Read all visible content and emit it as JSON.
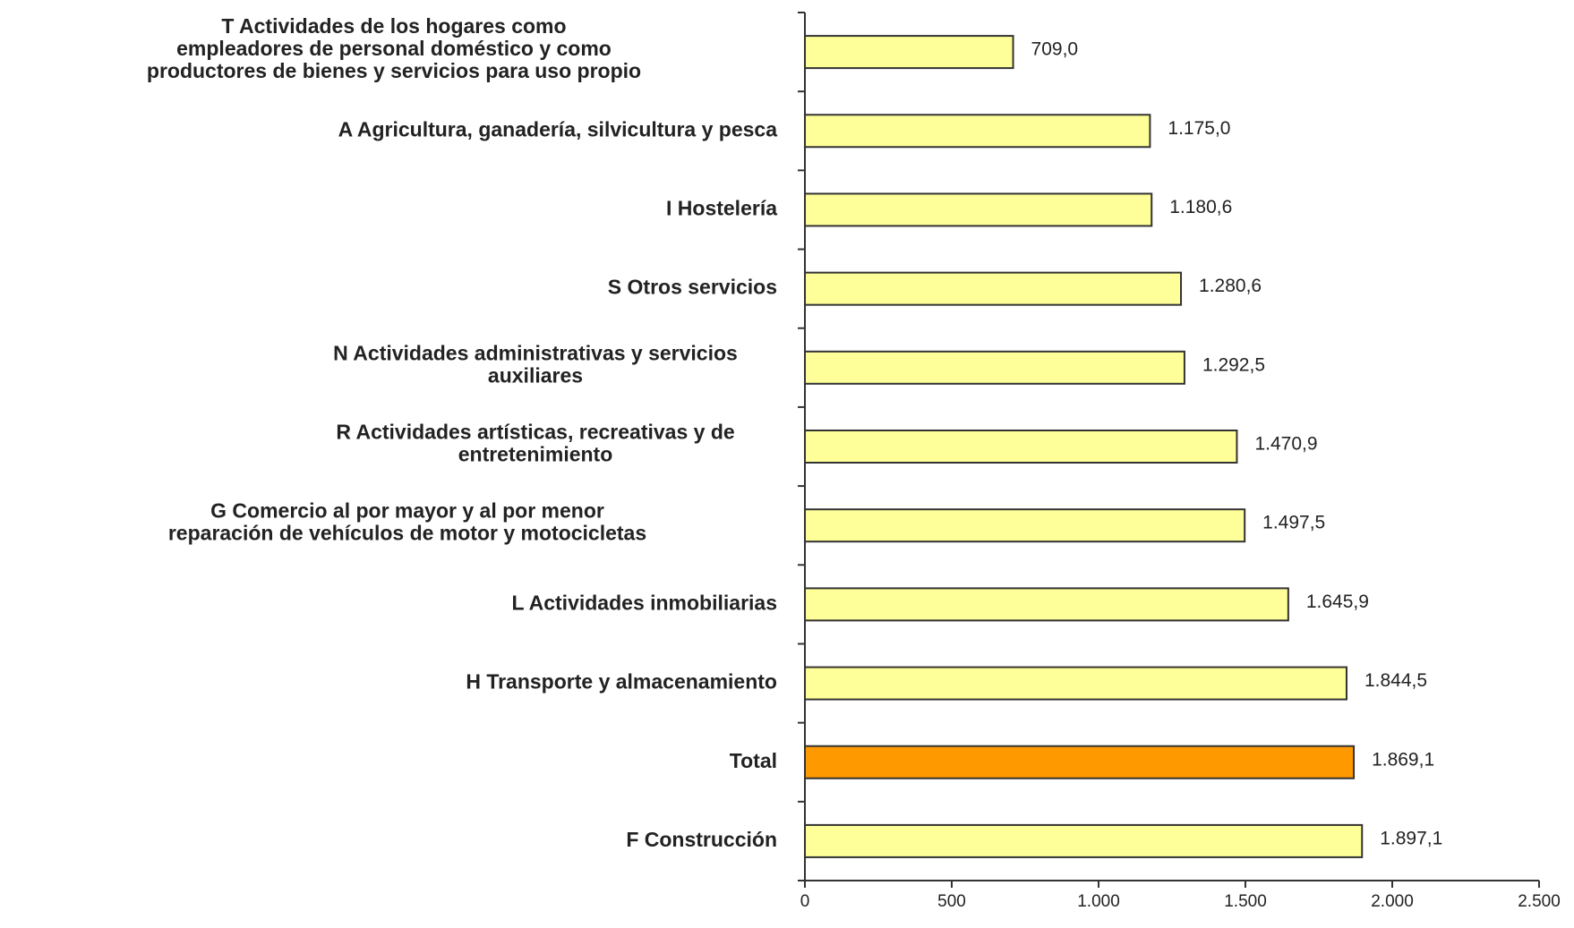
{
  "chart_data": {
    "type": "bar",
    "orientation": "horizontal",
    "categories": [
      "T  Actividades de los hogares como\nempleadores de personal doméstico y como\nproductores de bienes y servicios para uso propio",
      "A  Agricultura, ganadería, silvicultura y pesca",
      "I  Hostelería",
      "S  Otros servicios",
      "N  Actividades administrativas y servicios\nauxiliares",
      "R  Actividades artísticas, recreativas y de\nentretenimiento",
      "G  Comercio al por mayor y al por menor\nreparación de vehículos de motor y motocicletas",
      "L  Actividades inmobiliarias",
      "H  Transporte y almacenamiento",
      "Total",
      "F  Construcción"
    ],
    "values": [
      709.0,
      1175.0,
      1180.6,
      1280.6,
      1292.5,
      1470.9,
      1497.5,
      1645.9,
      1844.5,
      1869.1,
      1897.1
    ],
    "value_labels": [
      "709,0",
      "1.175,0",
      "1.180,6",
      "1.280,6",
      "1.292,5",
      "1.470,9",
      "1.497,5",
      "1.645,9",
      "1.844,5",
      "1.869,1",
      "1.897,1"
    ],
    "colors": [
      "#ffff99",
      "#ffff99",
      "#ffff99",
      "#ffff99",
      "#ffff99",
      "#ffff99",
      "#ffff99",
      "#ffff99",
      "#ffff99",
      "#ff9900",
      "#ffff99"
    ],
    "xlim": [
      0,
      2500
    ],
    "xticks": [
      0,
      500,
      {
        "value": 1000,
        "label": "1.000"
      },
      {
        "value": 1500,
        "label": "1.500"
      },
      {
        "value": 2000,
        "label": "2.000"
      },
      {
        "value": 2500,
        "label": "2.500"
      }
    ]
  }
}
